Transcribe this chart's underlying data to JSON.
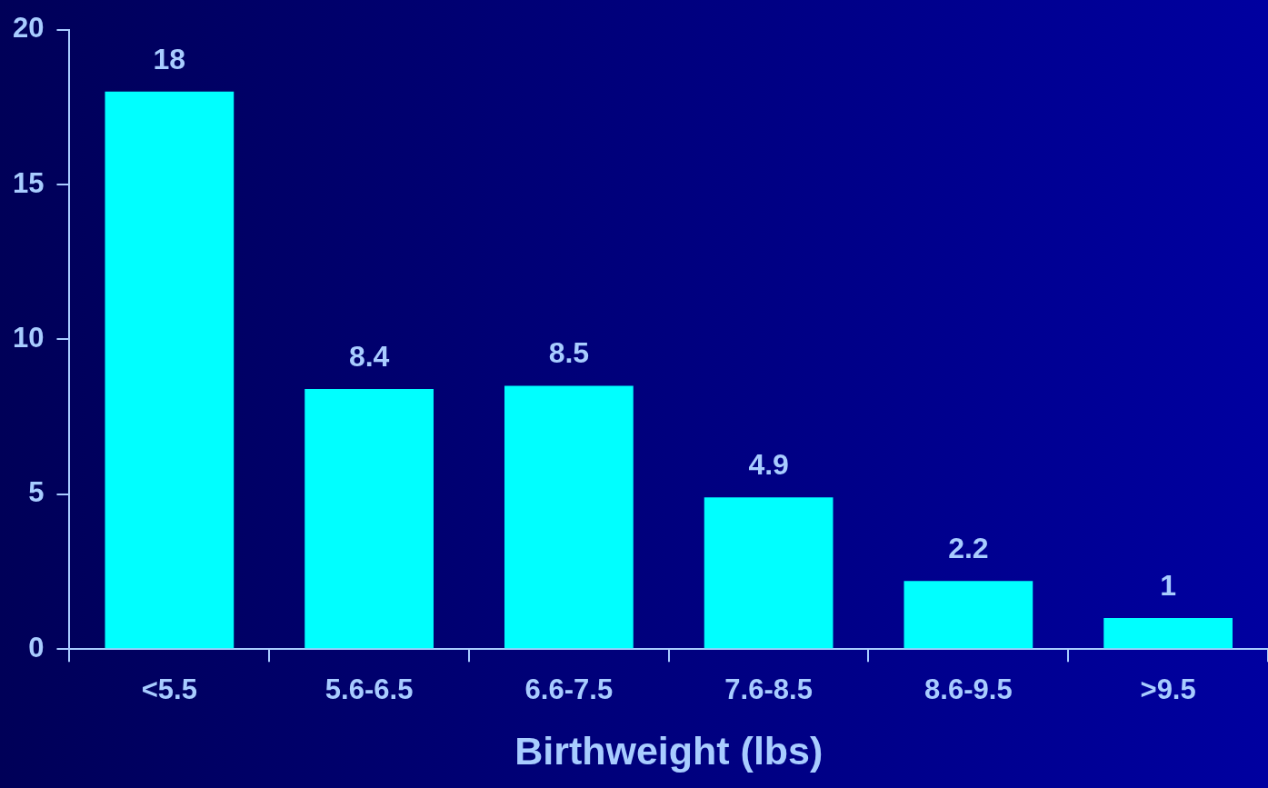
{
  "chart_data": {
    "type": "bar",
    "xlabel": "Birthweight (lbs)",
    "categories": [
      "<5.5",
      "5.6-6.5",
      "6.6-7.5",
      "7.6-8.5",
      "8.6-9.5",
      ">9.5"
    ],
    "values": [
      18,
      8.4,
      8.5,
      4.9,
      2.2,
      1
    ],
    "color": "#00ffff",
    "ylim": [
      0,
      20
    ],
    "yticks": [
      0,
      5,
      10,
      15,
      20
    ],
    "grid": false,
    "data_labels": true,
    "legend": false
  }
}
